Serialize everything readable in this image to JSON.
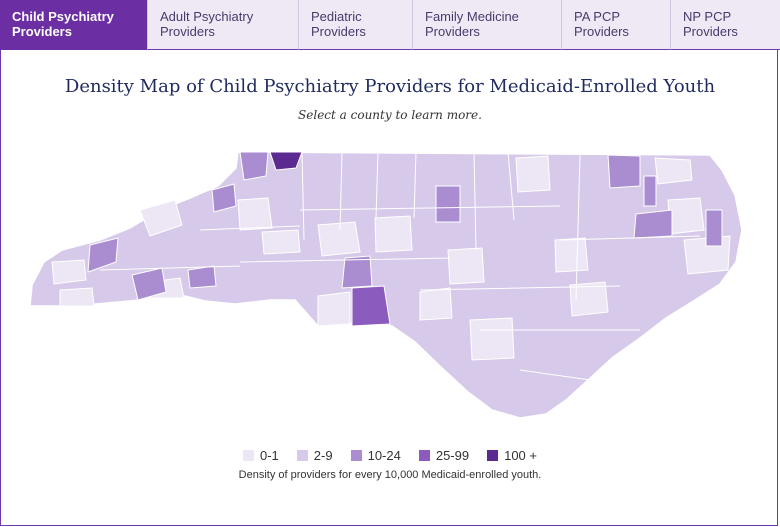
{
  "tabs": [
    {
      "line1": "Child Psychiatry",
      "line2": "Providers",
      "active": true
    },
    {
      "line1": "Adult Psychiatry",
      "line2": "Providers",
      "active": false
    },
    {
      "line1": "Pediatric",
      "line2": "Providers",
      "active": false
    },
    {
      "line1": "Family Medicine",
      "line2": "Providers",
      "active": false
    },
    {
      "line1": "PA PCP",
      "line2": "Providers",
      "active": false
    },
    {
      "line1": "NP PCP",
      "line2": "Providers",
      "active": false
    }
  ],
  "map": {
    "title": "Density Map of Child Psychiatry Providers for Medicaid-Enrolled Youth",
    "subtitle": "Select a county to learn more."
  },
  "legend": {
    "items": [
      {
        "label": "0-1",
        "color": "#ede7f5"
      },
      {
        "label": "2-9",
        "color": "#d6c9e9"
      },
      {
        "label": "10-24",
        "color": "#aa8dd0"
      },
      {
        "label": "25-99",
        "color": "#8b5cbd"
      },
      {
        "label": "100 +",
        "color": "#5a2a91"
      }
    ],
    "note": "Density of providers for every 10,000 Medicaid-enrolled youth."
  },
  "colors": {
    "accent": "#6c2ea3",
    "tab_bg": "#efe9f6",
    "title": "#1f2a5e"
  }
}
